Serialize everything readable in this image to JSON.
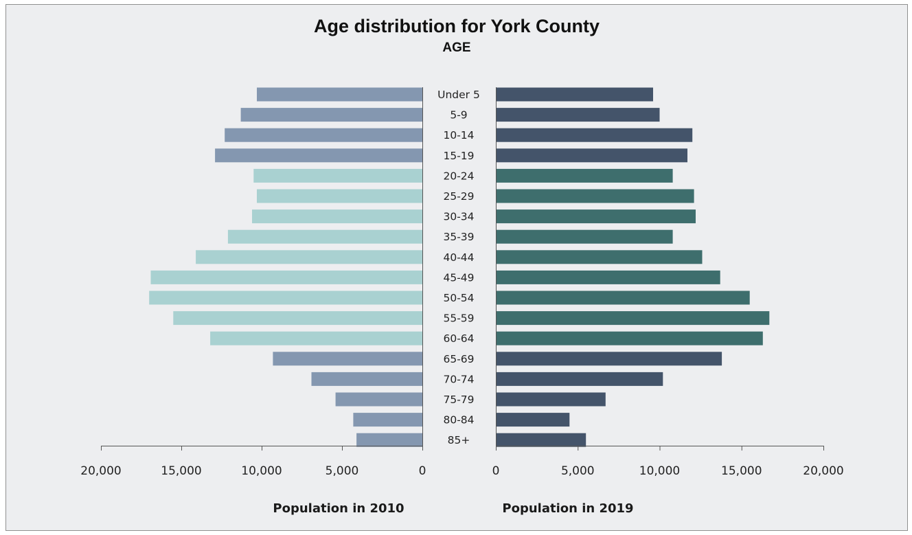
{
  "chart_data": {
    "type": "bar",
    "orientation": "horizontal",
    "layout": "population-pyramid",
    "title": "Age distribution for York County",
    "subtitle": "AGE",
    "categories": [
      "Under 5",
      "5-9",
      "10-14",
      "15-19",
      "20-24",
      "25-29",
      "30-34",
      "35-39",
      "40-44",
      "45-49",
      "50-54",
      "55-59",
      "60-64",
      "65-69",
      "70-74",
      "75-79",
      "80-84",
      "85+"
    ],
    "highlight_categories": [
      "20-24",
      "25-29",
      "30-34",
      "35-39",
      "40-44",
      "45-49",
      "50-54",
      "55-59",
      "60-64"
    ],
    "series": [
      {
        "side": "left",
        "values": [
          10300,
          11300,
          12300,
          12900,
          10500,
          10300,
          10600,
          12100,
          14100,
          16900,
          17000,
          15500,
          13200,
          9300,
          6900,
          5400,
          4300,
          4100
        ]
      },
      {
        "side": "right",
        "values": [
          9600,
          10000,
          12000,
          11700,
          10800,
          12100,
          12200,
          10800,
          12600,
          13700,
          15500,
          16700,
          16300,
          13800,
          10200,
          6700,
          4500,
          5500
        ]
      }
    ],
    "colors": {
      "left_base": "#8497b0",
      "left_highlight": "#a9d1d1",
      "right_base": "#44546a",
      "right_highlight": "#3e6e6d",
      "axis": "#555555",
      "background": "#edeef0"
    },
    "left_axis": {
      "title": "Population in 2010",
      "range": [
        20000,
        0
      ],
      "ticks": [
        "20,000",
        "15,000",
        "10,000",
        "5,000",
        "0"
      ],
      "tick_values": [
        20000,
        15000,
        10000,
        5000,
        0
      ]
    },
    "right_axis": {
      "title": "Population in 2019",
      "range": [
        0,
        20000
      ],
      "ticks": [
        "0",
        "5,000",
        "10,000",
        "15,000",
        "20,000"
      ],
      "tick_values": [
        0,
        5000,
        10000,
        15000,
        20000
      ]
    },
    "grid": false,
    "legend": "none"
  }
}
